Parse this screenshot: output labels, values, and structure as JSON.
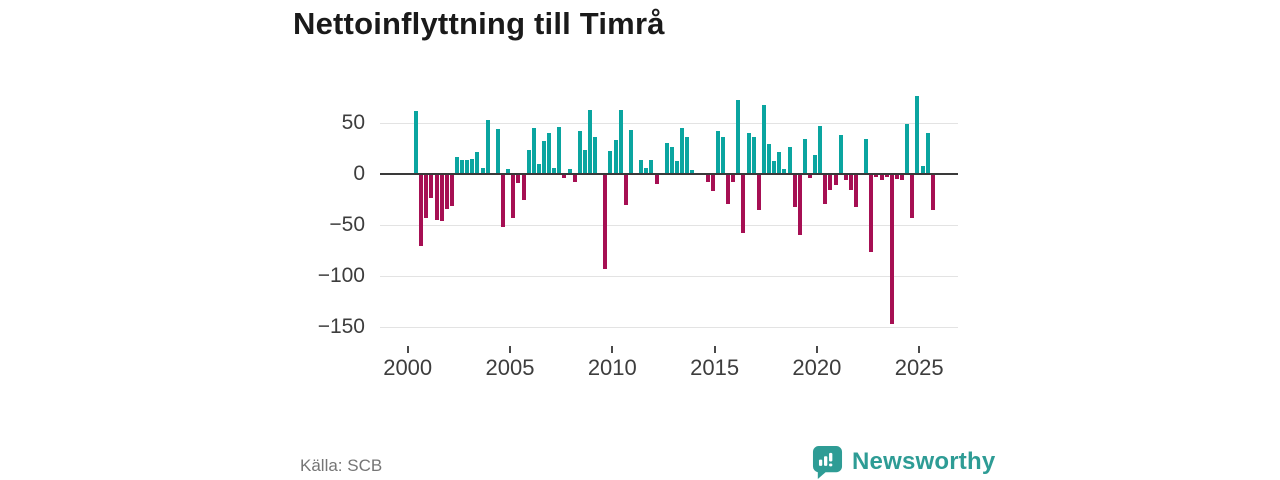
{
  "title": "Nettoinflyttning till Timrå",
  "source": "Källa: SCB",
  "brand": {
    "name": "Newsworthy",
    "color": "#2e9c95"
  },
  "colors": {
    "positive_bar": "#0aa5a0",
    "negative_bar": "#a60f53",
    "gridline": "#e3e3e3",
    "zero_line": "#3a3a3a",
    "axis_text": "#3d3d3d",
    "title_text": "#1a1a1a",
    "source_text": "#757575"
  },
  "chart_data": {
    "type": "bar",
    "title": "Nettoinflyttning till Timrå",
    "xlabel": "",
    "ylabel": "",
    "grid": true,
    "yticks": [
      50,
      0,
      -50,
      -100,
      -150
    ],
    "xticks": [
      2000,
      2005,
      2010,
      2015,
      2020,
      2025
    ],
    "ylim": [
      -160,
      80
    ],
    "xlim_years": [
      1999.3,
      2026.9
    ],
    "x": [
      "2000 Q1",
      "2000 Q2",
      "2000 Q3",
      "2000 Q4",
      "2001 Q1",
      "2001 Q2",
      "2001 Q3",
      "2001 Q4",
      "2002 Q1",
      "2002 Q2",
      "2002 Q3",
      "2002 Q4",
      "2003 Q1",
      "2003 Q2",
      "2003 Q3",
      "2003 Q4",
      "2004 Q1",
      "2004 Q2",
      "2004 Q3",
      "2004 Q4",
      "2005 Q1",
      "2005 Q2",
      "2005 Q3",
      "2005 Q4",
      "2006 Q1",
      "2006 Q2",
      "2006 Q3",
      "2006 Q4",
      "2007 Q1",
      "2007 Q2",
      "2007 Q3",
      "2007 Q4",
      "2008 Q1",
      "2008 Q2",
      "2008 Q3",
      "2008 Q4",
      "2009 Q1",
      "2009 Q2",
      "2009 Q3",
      "2009 Q4",
      "2010 Q1",
      "2010 Q2",
      "2010 Q3",
      "2010 Q4",
      "2011 Q1",
      "2011 Q2",
      "2011 Q3",
      "2011 Q4",
      "2012 Q1",
      "2012 Q2",
      "2012 Q3",
      "2012 Q4",
      "2013 Q1",
      "2013 Q2",
      "2013 Q3",
      "2013 Q4",
      "2014 Q1",
      "2014 Q2",
      "2014 Q3",
      "2014 Q4",
      "2015 Q1",
      "2015 Q2",
      "2015 Q3",
      "2015 Q4",
      "2016 Q1",
      "2016 Q2",
      "2016 Q3",
      "2016 Q4",
      "2017 Q1",
      "2017 Q2",
      "2017 Q3",
      "2017 Q4",
      "2018 Q1",
      "2018 Q2",
      "2018 Q3",
      "2018 Q4",
      "2019 Q1",
      "2019 Q2",
      "2019 Q3",
      "2019 Q4",
      "2020 Q1",
      "2020 Q2",
      "2020 Q3",
      "2020 Q4",
      "2021 Q1",
      "2021 Q2",
      "2021 Q3",
      "2021 Q4",
      "2022 Q1",
      "2022 Q2",
      "2022 Q3",
      "2022 Q4",
      "2023 Q1",
      "2023 Q2",
      "2023 Q3",
      "2023 Q4",
      "2024 Q1",
      "2024 Q2",
      "2024 Q3",
      "2024 Q4",
      "2025 Q1",
      "2025 Q2",
      "2025 Q3"
    ],
    "values": [
      0,
      62,
      -71,
      -43,
      -24,
      -45,
      -46,
      -34,
      -31,
      17,
      14,
      14,
      15,
      22,
      6,
      53,
      0,
      44,
      -52,
      5,
      -43,
      -9,
      -25,
      24,
      45,
      10,
      32,
      40,
      6,
      46,
      -4,
      5,
      -8,
      42,
      24,
      63,
      36,
      0,
      -93,
      23,
      33,
      63,
      -30,
      43,
      0,
      14,
      6,
      14,
      -10,
      0,
      30,
      26,
      13,
      45,
      36,
      4,
      0,
      0,
      -8,
      -17,
      42,
      36,
      -29,
      -8,
      73,
      -58,
      40,
      36,
      -35,
      68,
      29,
      13,
      22,
      5,
      26,
      -32,
      -60,
      34,
      -4,
      19,
      47,
      -29,
      -16,
      -11,
      38,
      -6,
      -16,
      -32,
      0,
      34,
      -76,
      -3,
      -6,
      -3,
      -147,
      -5,
      -6,
      49,
      -43,
      76,
      8,
      40,
      -35
    ]
  }
}
